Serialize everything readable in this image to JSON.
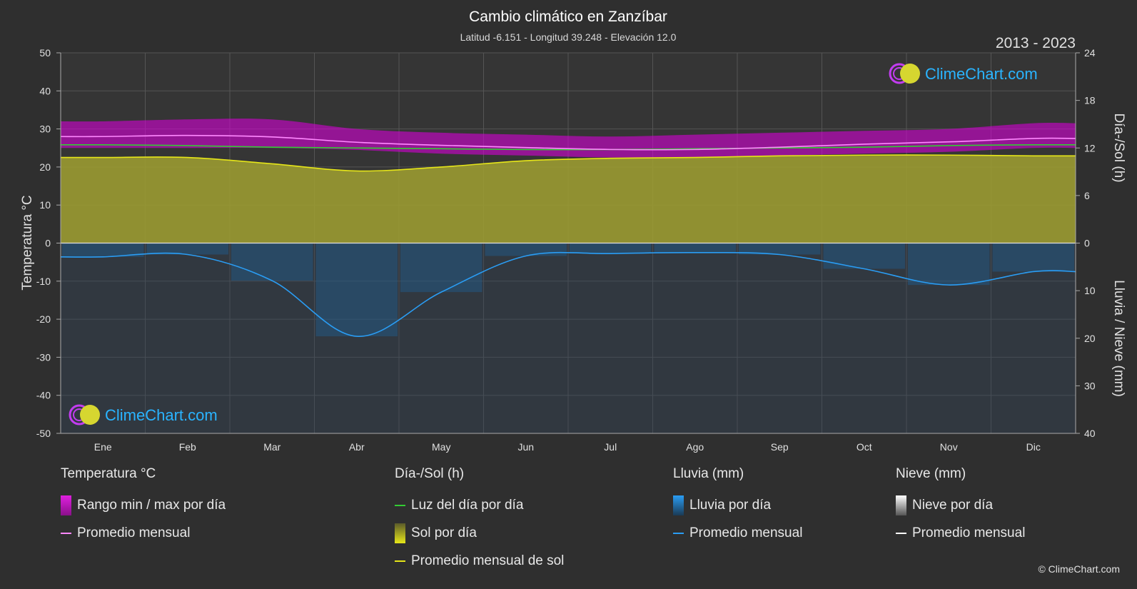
{
  "title": "Cambio climático en Zanzíbar",
  "subtitle": "Latitud -6.151 - Longitud 39.248 - Elevación 12.0",
  "years": "2013 - 2023",
  "logo_text": "ClimeChart.com",
  "copyright": "© ClimeChart.com",
  "colors": {
    "background": "#2f2f2f",
    "temp_range": "#d400d4",
    "temp_avg": "#ff88ff",
    "daylight": "#33cc33",
    "sun_fill": "#a0a030",
    "sun_avg": "#e6e619",
    "rain_fill": "#1a6fb0",
    "rain_avg": "#2a9df4",
    "snow_avg": "#ffffff"
  },
  "chart_data": {
    "type": "line",
    "categories": [
      "Ene",
      "Feb",
      "Mar",
      "Abr",
      "May",
      "Jun",
      "Jul",
      "Ago",
      "Sep",
      "Oct",
      "Nov",
      "Dic"
    ],
    "left_axis": {
      "label": "Temperatura °C",
      "ylim": [
        -50,
        50
      ],
      "ticks": [
        50,
        40,
        30,
        20,
        10,
        0,
        -10,
        -20,
        -30,
        -40,
        -50
      ]
    },
    "right_axis_top": {
      "label": "Día-/Sol (h)",
      "ylim": [
        0,
        24
      ],
      "ticks": [
        24,
        18,
        12,
        6,
        0
      ]
    },
    "right_axis_bottom": {
      "label": "Lluvia / Nieve (mm)",
      "ylim": [
        0,
        40
      ],
      "ticks": [
        0,
        10,
        20,
        30,
        40
      ]
    },
    "series": [
      {
        "name": "Rango min / max por día",
        "type": "range",
        "axis": "temp",
        "min": [
          25.0,
          25.0,
          25.0,
          24.5,
          23.5,
          23.0,
          22.5,
          22.5,
          23.0,
          23.5,
          24.0,
          25.0
        ],
        "max": [
          32.0,
          32.5,
          32.5,
          30.0,
          29.0,
          28.5,
          28.0,
          28.5,
          29.0,
          29.5,
          30.0,
          31.5
        ]
      },
      {
        "name": "Promedio mensual",
        "type": "line",
        "axis": "temp",
        "values": [
          28.0,
          28.3,
          27.9,
          26.5,
          25.7,
          25.1,
          24.6,
          24.6,
          25.2,
          26.0,
          26.6,
          27.5
        ]
      },
      {
        "name": "Luz del día por día",
        "type": "line",
        "axis": "sun",
        "values": [
          12.4,
          12.3,
          12.1,
          12.0,
          11.9,
          11.8,
          11.8,
          11.9,
          12.0,
          12.1,
          12.3,
          12.4
        ]
      },
      {
        "name": "Sol por día",
        "type": "area",
        "axis": "sun",
        "values": [
          10.8,
          10.8,
          10.0,
          9.1,
          9.6,
          10.4,
          10.7,
          10.8,
          11.0,
          11.1,
          11.1,
          11.0
        ]
      },
      {
        "name": "Promedio mensual de sol",
        "type": "line",
        "axis": "sun",
        "values": [
          10.8,
          10.8,
          10.0,
          9.1,
          9.6,
          10.4,
          10.7,
          10.8,
          11.0,
          11.1,
          11.1,
          11.0
        ]
      },
      {
        "name": "Lluvia por día",
        "type": "bars",
        "axis": "rain",
        "values": [
          2.9,
          2.4,
          7.9,
          19.6,
          10.3,
          2.7,
          2.2,
          2.0,
          2.4,
          5.4,
          8.8,
          6.0
        ]
      },
      {
        "name": "Promedio mensual",
        "type": "line",
        "axis": "rain",
        "values": [
          2.9,
          2.4,
          7.9,
          19.6,
          10.3,
          2.7,
          2.2,
          2.0,
          2.4,
          5.4,
          8.8,
          6.0
        ]
      },
      {
        "name": "Promedio mensual",
        "type": "line",
        "axis": "snow",
        "values": [
          0,
          0,
          0,
          0,
          0,
          0,
          0,
          0,
          0,
          0,
          0,
          0
        ]
      }
    ]
  },
  "legend": {
    "temp": {
      "header": "Temperatura °C",
      "range": "Rango min / max por día",
      "avg": "Promedio mensual"
    },
    "sun": {
      "header": "Día-/Sol (h)",
      "daylight": "Luz del día por día",
      "sun": "Sol por día",
      "avg": "Promedio mensual de sol"
    },
    "rain": {
      "header": "Lluvia (mm)",
      "daily": "Lluvia por día",
      "avg": "Promedio mensual"
    },
    "snow": {
      "header": "Nieve (mm)",
      "daily": "Nieve por día",
      "avg": "Promedio mensual"
    }
  }
}
